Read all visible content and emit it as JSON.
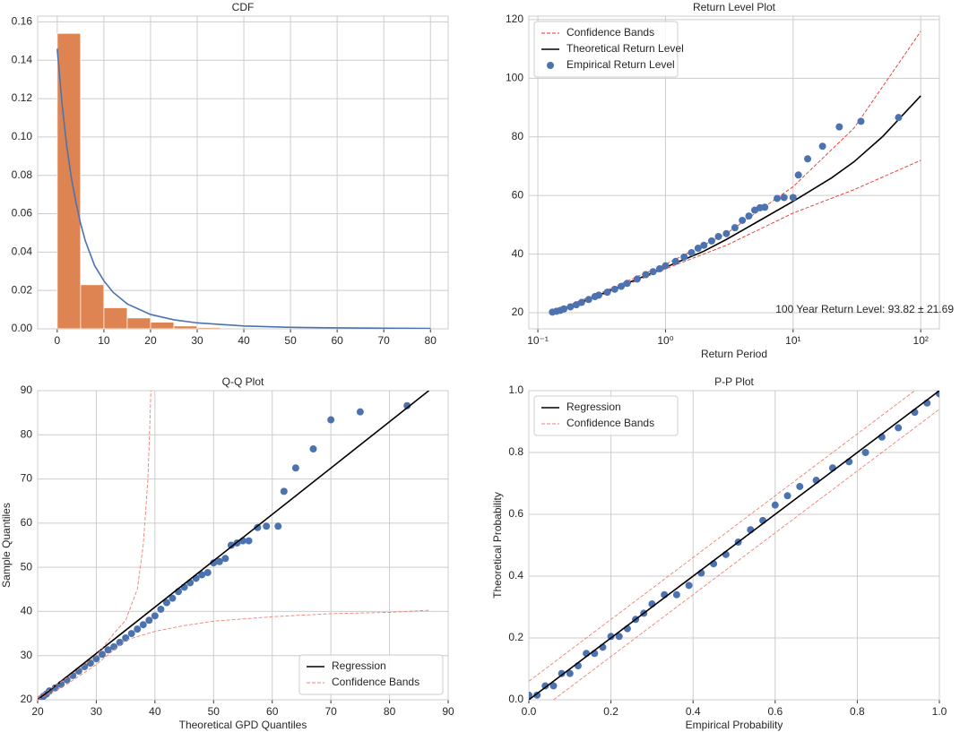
{
  "chart_data": [
    {
      "type": "histogram",
      "title": "CDF",
      "xlim": [
        -4.2,
        83.8
      ],
      "xticks": [
        0,
        10,
        20,
        30,
        40,
        50,
        60,
        70,
        80
      ],
      "ylim": [
        0,
        0.163
      ],
      "yticks": [
        {
          "value": 0,
          "label": "0.00"
        },
        {
          "value": 0.02,
          "label": "0.02"
        },
        {
          "value": 0.04,
          "label": "0.04"
        },
        {
          "value": 0.06,
          "label": "0.06"
        },
        {
          "value": 0.08,
          "label": "0.08"
        },
        {
          "value": 0.1,
          "label": "0.10"
        },
        {
          "value": 0.12,
          "label": "0.12"
        },
        {
          "value": 0.14,
          "label": "0.14"
        },
        {
          "value": 0.16,
          "label": "0.16"
        }
      ],
      "grid": true,
      "series": [
        {
          "type": "bar",
          "color": "#dd8452",
          "bins": [
            0,
            5,
            10,
            15,
            20,
            25,
            30,
            35
          ],
          "values": [
            0.154,
            0.023,
            0.011,
            0.0057,
            0.0035,
            0.0015,
            0.0007
          ]
        },
        {
          "type": "line",
          "color": "#4c72b0",
          "x": [
            0,
            1,
            2,
            3,
            4,
            5,
            6,
            8,
            10,
            12,
            15,
            20,
            25,
            30,
            40,
            50,
            60,
            70,
            80
          ],
          "values": [
            0.146,
            0.118,
            0.096,
            0.079,
            0.066,
            0.055,
            0.046,
            0.033,
            0.025,
            0.019,
            0.013,
            0.0075,
            0.0047,
            0.0031,
            0.0015,
            0.0008,
            0.0005,
            0.0003,
            0.0002
          ]
        }
      ]
    },
    {
      "type": "line",
      "title": "Return Level Plot",
      "xlabel": "Return Period",
      "xscale": "log",
      "xlim": [
        0.085,
        140
      ],
      "xticks": [
        {
          "value": 0.1,
          "label": "10⁻¹"
        },
        {
          "value": 1,
          "label": "10⁰"
        },
        {
          "value": 10,
          "label": "10¹"
        },
        {
          "value": 100,
          "label": "10²"
        }
      ],
      "ylim": [
        14.5,
        121.2
      ],
      "yticks": [
        20,
        40,
        60,
        80,
        100,
        120
      ],
      "grid": true,
      "legend": "upper left",
      "annotation": "100 Year Return Level: 93.82 ± 21.69",
      "series": [
        {
          "type": "lines",
          "name": "Confidence Bands",
          "color": "#e8322d",
          "dashed": true,
          "lines": [
            {
              "x": [
                0.13,
                0.3,
                1,
                3,
                10,
                30,
                100
              ],
              "values": [
                20.5,
                26.5,
                36.5,
                47,
                63,
                83,
                116
              ]
            },
            {
              "x": [
                0.13,
                0.3,
                1,
                3,
                10,
                30,
                100
              ],
              "values": [
                19.7,
                25.5,
                35,
                43,
                54,
                62,
                72
              ]
            }
          ]
        },
        {
          "type": "line",
          "name": "Theoretical Return Level",
          "color": "#000000",
          "x": [
            0.13,
            0.2,
            0.3,
            0.5,
            1,
            2,
            3,
            5,
            10,
            20,
            30,
            50,
            100
          ],
          "values": [
            20,
            23,
            26,
            30,
            35.5,
            41,
            45,
            50.5,
            58,
            66,
            71.5,
            80,
            94
          ]
        },
        {
          "type": "scatter",
          "name": "Empirical Return Level",
          "color": "#4c72b0",
          "x": [
            0.13,
            0.14,
            0.15,
            0.16,
            0.18,
            0.2,
            0.22,
            0.25,
            0.28,
            0.3,
            0.35,
            0.4,
            0.45,
            0.5,
            0.6,
            0.7,
            0.8,
            0.9,
            1.0,
            1.2,
            1.4,
            1.6,
            1.8,
            2.0,
            2.3,
            2.6,
            3.0,
            3.5,
            4,
            4.5,
            5,
            5.5,
            6,
            7.5,
            8.5,
            10,
            11,
            13,
            17,
            23,
            34,
            67
          ],
          "values": [
            20.2,
            20.5,
            20.8,
            21.3,
            22,
            22.7,
            23.5,
            24.5,
            25.5,
            26,
            27,
            28,
            29,
            30,
            31.5,
            33,
            34,
            35,
            36,
            37.5,
            39,
            40.5,
            42,
            43,
            44.5,
            46,
            47,
            49,
            51.5,
            53,
            55,
            55.8,
            56,
            59,
            59.3,
            59.3,
            67,
            72.5,
            76.8,
            83.4,
            85.3,
            86.6
          ]
        }
      ]
    },
    {
      "type": "scatter",
      "title": "Q-Q Plot",
      "xlabel": "Theoretical GPD Quantiles",
      "ylabel": "Sample Quantiles",
      "xlim": [
        20,
        90
      ],
      "xticks": [
        20,
        30,
        40,
        50,
        60,
        70,
        80,
        90
      ],
      "ylim": [
        20,
        90
      ],
      "yticks": [
        20,
        30,
        40,
        50,
        60,
        70,
        80,
        90
      ],
      "grid": true,
      "legend": "lower right",
      "series": [
        {
          "type": "scatter",
          "color": "#4c72b0",
          "x": [
            20.5,
            21,
            21.5,
            22,
            23,
            24,
            25,
            26,
            27,
            28,
            29,
            30,
            31,
            32,
            33,
            34,
            35,
            36,
            37,
            38,
            39,
            40,
            41,
            42,
            43,
            44,
            45,
            46,
            47,
            48,
            49,
            50,
            51,
            52,
            53,
            54,
            55,
            56,
            57.5,
            59,
            61,
            62,
            64,
            67,
            70,
            75,
            83
          ],
          "values": [
            20.2,
            20.8,
            21.3,
            22,
            22.7,
            23.5,
            24.5,
            25.5,
            26.5,
            27.5,
            28.3,
            29.3,
            30.3,
            31.3,
            32,
            33,
            34,
            35,
            36,
            37,
            38,
            39,
            40.5,
            42,
            43,
            44.5,
            45.5,
            46.5,
            47.5,
            48.3,
            48.8,
            51,
            51.3,
            52,
            55,
            55.5,
            56,
            56,
            59,
            59.3,
            59.3,
            67.2,
            72.5,
            76.8,
            83.4,
            85.2,
            86.6
          ]
        },
        {
          "type": "line",
          "name": "Regression",
          "color": "#000000",
          "x": [
            20,
            86.7
          ],
          "values": [
            20,
            90
          ]
        },
        {
          "type": "lines",
          "name": "Confidence Bands",
          "color": "#f08070",
          "dashed": true,
          "lines": [
            {
              "x": [
                20,
                25,
                30,
                33,
                35,
                37,
                38,
                38.8,
                39.2,
                39.3
              ],
              "values": [
                20.5,
                25,
                30,
                35,
                38,
                45,
                55,
                70,
                85,
                90
              ]
            },
            {
              "x": [
                20,
                25,
                30,
                35,
                40,
                45,
                50,
                60,
                70,
                80,
                87
              ],
              "values": [
                20,
                23.5,
                28,
                33.5,
                35.5,
                36.8,
                37.8,
                38.8,
                39.5,
                39.8,
                40.3
              ]
            }
          ]
        }
      ]
    },
    {
      "type": "scatter",
      "title": "P-P Plot",
      "xlabel": "Empirical Probability",
      "ylabel": "Theoretical Probability",
      "xlim": [
        0,
        1
      ],
      "xticks": [
        {
          "value": 0,
          "label": "0.0"
        },
        {
          "value": 0.2,
          "label": "0.2"
        },
        {
          "value": 0.4,
          "label": "0.4"
        },
        {
          "value": 0.6,
          "label": "0.6"
        },
        {
          "value": 0.8,
          "label": "0.8"
        },
        {
          "value": 1,
          "label": "1.0"
        }
      ],
      "ylim": [
        0,
        1
      ],
      "yticks": [
        {
          "value": 0,
          "label": "0.0"
        },
        {
          "value": 0.2,
          "label": "0.2"
        },
        {
          "value": 0.4,
          "label": "0.4"
        },
        {
          "value": 0.6,
          "label": "0.6"
        },
        {
          "value": 0.8,
          "label": "0.8"
        },
        {
          "value": 1,
          "label": "1.0"
        }
      ],
      "grid": true,
      "legend": "upper left",
      "series": [
        {
          "type": "scatter",
          "color": "#4c72b0",
          "x": [
            0,
            0.02,
            0.04,
            0.06,
            0.08,
            0.1,
            0.12,
            0.14,
            0.16,
            0.18,
            0.2,
            0.22,
            0.24,
            0.26,
            0.28,
            0.3,
            0.33,
            0.36,
            0.39,
            0.42,
            0.45,
            0.48,
            0.51,
            0.54,
            0.57,
            0.6,
            0.63,
            0.66,
            0.7,
            0.74,
            0.78,
            0.82,
            0.86,
            0.9,
            0.94,
            0.97,
            1.0
          ],
          "values": [
            0.015,
            0.015,
            0.045,
            0.045,
            0.085,
            0.085,
            0.11,
            0.15,
            0.15,
            0.17,
            0.205,
            0.205,
            0.23,
            0.26,
            0.28,
            0.31,
            0.34,
            0.34,
            0.37,
            0.41,
            0.44,
            0.47,
            0.51,
            0.55,
            0.58,
            0.63,
            0.66,
            0.69,
            0.71,
            0.75,
            0.77,
            0.8,
            0.85,
            0.88,
            0.93,
            0.96,
            0.99
          ]
        },
        {
          "type": "line",
          "name": "Regression",
          "color": "#000000",
          "x": [
            0,
            1
          ],
          "values": [
            0,
            1
          ]
        },
        {
          "type": "lines",
          "name": "Confidence Bands",
          "color": "#f08070",
          "dashed": true,
          "lines": [
            {
              "x": [
                0,
                0.94
              ],
              "values": [
                0.06,
                1
              ]
            },
            {
              "x": [
                0.06,
                1
              ],
              "values": [
                0,
                0.94
              ]
            }
          ]
        }
      ]
    }
  ]
}
